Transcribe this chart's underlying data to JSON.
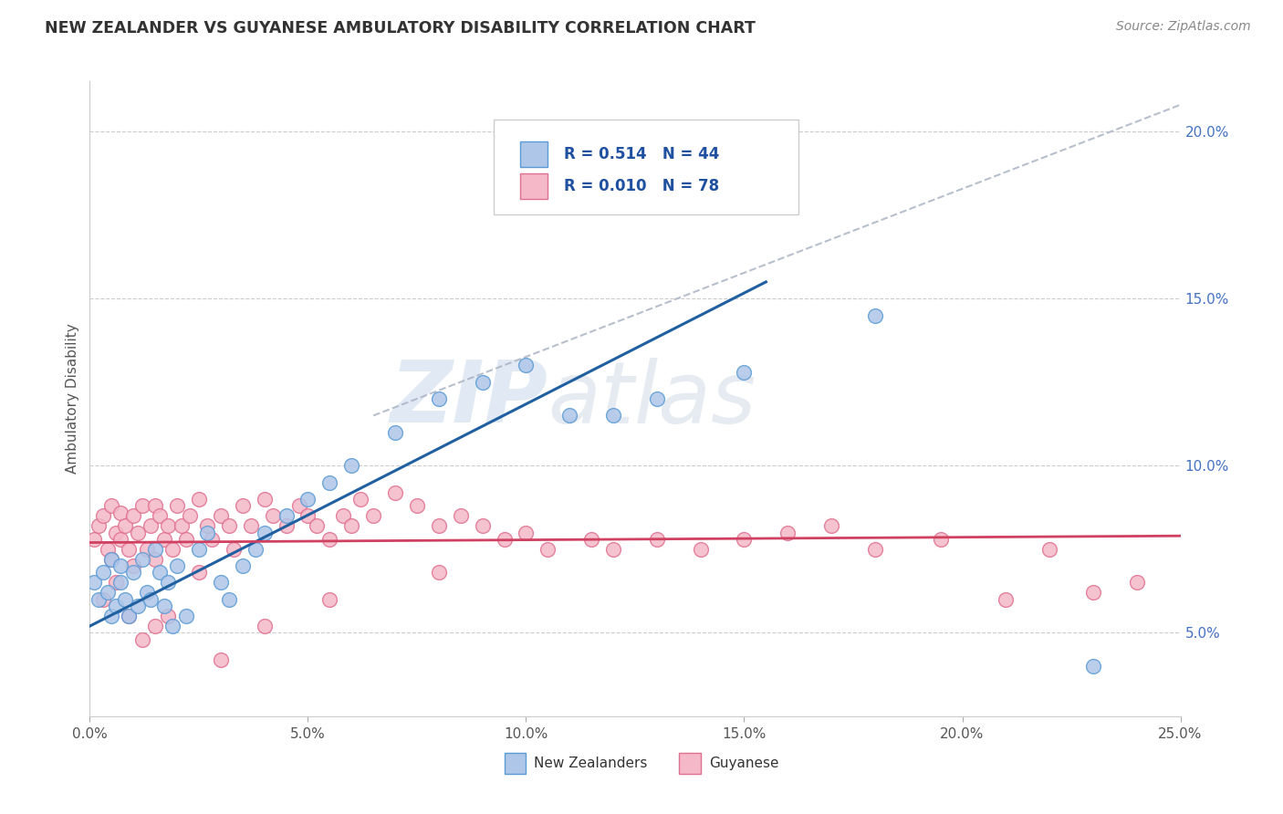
{
  "title": "NEW ZEALANDER VS GUYANESE AMBULATORY DISABILITY CORRELATION CHART",
  "source": "Source: ZipAtlas.com",
  "ylabel": "Ambulatory Disability",
  "xlim": [
    0.0,
    0.25
  ],
  "ylim": [
    0.025,
    0.215
  ],
  "xticks": [
    0.0,
    0.05,
    0.1,
    0.15,
    0.2,
    0.25
  ],
  "xticklabels": [
    "0.0%",
    "5.0%",
    "10.0%",
    "15.0%",
    "20.0%",
    "25.0%"
  ],
  "yticks_right": [
    0.05,
    0.1,
    0.15,
    0.2
  ],
  "yticklabels_right": [
    "5.0%",
    "10.0%",
    "15.0%",
    "20.0%"
  ],
  "blue_color": "#aec6e8",
  "blue_edge_color": "#5b9bd5",
  "pink_color": "#f4b8c8",
  "pink_edge_color": "#e07090",
  "blue_R": 0.514,
  "blue_N": 44,
  "pink_R": 0.01,
  "pink_N": 78,
  "blue_line_color": "#2060a0",
  "pink_line_color": "#d04060",
  "diag_line_color": "#b0b8c8",
  "legend_label_blue": "New Zealanders",
  "legend_label_pink": "Guyanese",
  "title_color": "#333333",
  "source_color": "#888888",
  "watermark_zip": "ZIP",
  "watermark_atlas": "atlas",
  "blue_line_x": [
    0.0,
    0.155
  ],
  "blue_line_y": [
    0.052,
    0.155
  ],
  "pink_line_x": [
    0.0,
    0.25
  ],
  "pink_line_y": [
    0.077,
    0.079
  ],
  "diag_line_x": [
    0.065,
    0.25
  ],
  "diag_line_y": [
    0.115,
    0.208
  ],
  "blue_scatter_x": [
    0.001,
    0.002,
    0.003,
    0.004,
    0.005,
    0.005,
    0.006,
    0.007,
    0.007,
    0.008,
    0.009,
    0.01,
    0.011,
    0.012,
    0.013,
    0.014,
    0.015,
    0.016,
    0.017,
    0.018,
    0.019,
    0.02,
    0.022,
    0.025,
    0.027,
    0.03,
    0.032,
    0.035,
    0.038,
    0.04,
    0.045,
    0.05,
    0.055,
    0.06,
    0.07,
    0.08,
    0.09,
    0.1,
    0.11,
    0.12,
    0.13,
    0.15,
    0.18,
    0.23
  ],
  "blue_scatter_y": [
    0.065,
    0.06,
    0.068,
    0.062,
    0.072,
    0.055,
    0.058,
    0.07,
    0.065,
    0.06,
    0.055,
    0.068,
    0.058,
    0.072,
    0.062,
    0.06,
    0.075,
    0.068,
    0.058,
    0.065,
    0.052,
    0.07,
    0.055,
    0.075,
    0.08,
    0.065,
    0.06,
    0.07,
    0.075,
    0.08,
    0.085,
    0.09,
    0.095,
    0.1,
    0.11,
    0.12,
    0.125,
    0.13,
    0.115,
    0.115,
    0.12,
    0.128,
    0.145,
    0.04
  ],
  "pink_scatter_x": [
    0.001,
    0.002,
    0.003,
    0.004,
    0.005,
    0.005,
    0.006,
    0.007,
    0.007,
    0.008,
    0.009,
    0.01,
    0.01,
    0.011,
    0.012,
    0.013,
    0.014,
    0.015,
    0.015,
    0.016,
    0.017,
    0.018,
    0.019,
    0.02,
    0.021,
    0.022,
    0.023,
    0.025,
    0.027,
    0.028,
    0.03,
    0.032,
    0.033,
    0.035,
    0.037,
    0.04,
    0.042,
    0.045,
    0.048,
    0.05,
    0.052,
    0.055,
    0.058,
    0.06,
    0.062,
    0.065,
    0.07,
    0.075,
    0.08,
    0.085,
    0.09,
    0.095,
    0.1,
    0.105,
    0.115,
    0.12,
    0.13,
    0.14,
    0.15,
    0.16,
    0.17,
    0.18,
    0.195,
    0.21,
    0.22,
    0.23,
    0.24,
    0.003,
    0.006,
    0.009,
    0.012,
    0.015,
    0.018,
    0.025,
    0.03,
    0.04,
    0.055,
    0.08
  ],
  "pink_scatter_y": [
    0.078,
    0.082,
    0.085,
    0.075,
    0.088,
    0.072,
    0.08,
    0.086,
    0.078,
    0.082,
    0.075,
    0.085,
    0.07,
    0.08,
    0.088,
    0.075,
    0.082,
    0.088,
    0.072,
    0.085,
    0.078,
    0.082,
    0.075,
    0.088,
    0.082,
    0.078,
    0.085,
    0.09,
    0.082,
    0.078,
    0.085,
    0.082,
    0.075,
    0.088,
    0.082,
    0.09,
    0.085,
    0.082,
    0.088,
    0.085,
    0.082,
    0.078,
    0.085,
    0.082,
    0.09,
    0.085,
    0.092,
    0.088,
    0.082,
    0.085,
    0.082,
    0.078,
    0.08,
    0.075,
    0.078,
    0.075,
    0.078,
    0.075,
    0.078,
    0.08,
    0.082,
    0.075,
    0.078,
    0.06,
    0.075,
    0.062,
    0.065,
    0.06,
    0.065,
    0.055,
    0.048,
    0.052,
    0.055,
    0.068,
    0.042,
    0.052,
    0.06,
    0.068
  ]
}
